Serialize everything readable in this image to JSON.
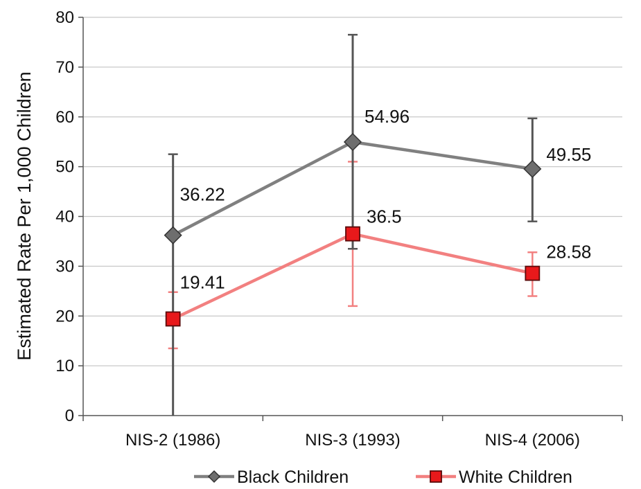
{
  "chart_data": {
    "type": "line",
    "categories": [
      "NIS-2 (1986)",
      "NIS-3 (1993)",
      "NIS-4 (2006)"
    ],
    "ylabel": "Estimated Rate Per  1,000 Children",
    "ylim": [
      0,
      80
    ],
    "yticks": [
      "0",
      "10",
      "20",
      "30",
      "40",
      "50",
      "60",
      "70",
      "80"
    ],
    "grid": "horizontal",
    "legend_placement": "bottom",
    "series": [
      {
        "name": "Black Children",
        "color": "#808080",
        "error_color": "#555555",
        "marker": "diamond",
        "values": [
          36.22,
          54.96,
          49.55
        ],
        "labels": [
          "36.22",
          "54.96",
          "49.55"
        ],
        "error_low": [
          0,
          33.5,
          39
        ],
        "error_high": [
          52.5,
          76.5,
          59.7
        ]
      },
      {
        "name": "White Children",
        "color": "#f28080",
        "marker_fill": "#e8191b",
        "error_color": "#f28080",
        "marker": "square",
        "values": [
          19.41,
          36.5,
          28.58
        ],
        "labels": [
          "19.41",
          "36.5",
          "28.58"
        ],
        "error_low": [
          13.5,
          22,
          24
        ],
        "error_high": [
          24.8,
          51,
          32.8
        ]
      }
    ]
  }
}
